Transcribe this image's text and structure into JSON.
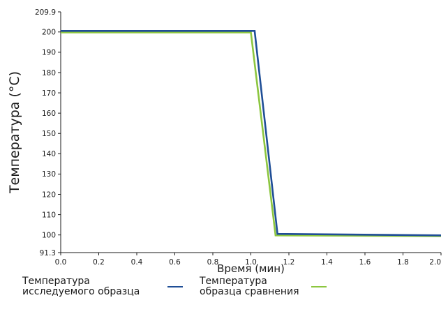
{
  "chart_data": {
    "type": "line",
    "xlabel": "Время (мин)",
    "ylabel": "Температура (°C)",
    "xlim": [
      0.0,
      2.0
    ],
    "ylim": [
      91.3,
      209.9
    ],
    "x_ticks": [
      "0.0",
      "0.2",
      "0.4",
      "0.6",
      "0.8",
      "1.0",
      "1.2",
      "1.4",
      "1.6",
      "1.8",
      "2.0"
    ],
    "y_ticks": [
      "91.3",
      "100",
      "110",
      "120",
      "130",
      "140",
      "150",
      "160",
      "170",
      "180",
      "190",
      "200",
      "209.9"
    ],
    "grid": false,
    "legend_position": "bottom",
    "series": [
      {
        "name": "Температура исследуемого образца",
        "color": "#1f4e96",
        "points": [
          [
            0.0,
            200.5
          ],
          [
            1.02,
            200.5
          ],
          [
            1.14,
            100.5
          ],
          [
            2.0,
            99.8
          ]
        ]
      },
      {
        "name": "Температура образца сравнения",
        "color": "#8cc63f",
        "points": [
          [
            0.0,
            199.8
          ],
          [
            1.0,
            199.8
          ],
          [
            1.13,
            99.8
          ],
          [
            2.0,
            99.4
          ]
        ]
      }
    ]
  }
}
